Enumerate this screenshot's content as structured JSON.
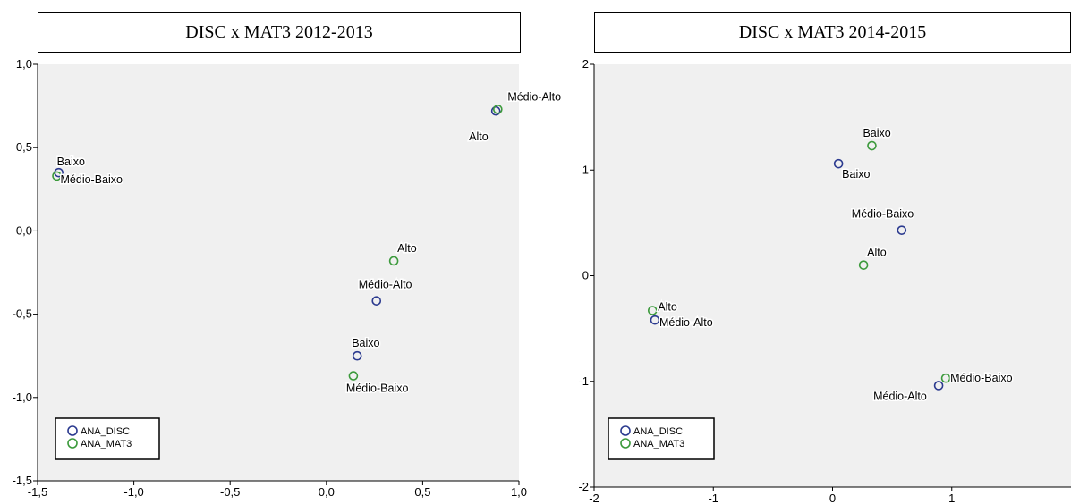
{
  "chart_data": [
    {
      "type": "scatter",
      "title": "DISC x MAT3 2012-2013",
      "xlim": [
        -1.5,
        1.0
      ],
      "ylim": [
        -1.5,
        1.0
      ],
      "xticks": [
        "-1,5",
        "-1,0",
        "-0,5",
        "0,0",
        "0,5",
        "1,0"
      ],
      "xtick_values": [
        -1.5,
        -1.0,
        -0.5,
        0.0,
        0.5,
        1.0
      ],
      "yticks": [
        "1,0",
        "0,5",
        "0,0",
        "-0,5",
        "-1,0",
        "-1,5"
      ],
      "ytick_values": [
        1.0,
        0.5,
        0.0,
        -0.5,
        -1.0,
        -1.5
      ],
      "legend_position": "bottom-left",
      "series": [
        {
          "name": "ANA_DISC",
          "color": "#2b3a8f",
          "points": [
            {
              "label": "Alto",
              "x": 0.88,
              "y": 0.72
            },
            {
              "label": "Baixo",
              "x": -1.39,
              "y": 0.35
            },
            {
              "label": "Médio-Alto",
              "x": 0.26,
              "y": -0.42
            },
            {
              "label": "Baixo",
              "x": 0.16,
              "y": -0.75
            }
          ]
        },
        {
          "name": "ANA_MAT3",
          "color": "#3c9a3c",
          "points": [
            {
              "label": "Médio-Alto",
              "x": 0.89,
              "y": 0.73
            },
            {
              "label": "Médio-Baixo",
              "x": -1.4,
              "y": 0.33
            },
            {
              "label": "Alto",
              "x": 0.35,
              "y": -0.18
            },
            {
              "label": "Médio-Baixo",
              "x": 0.14,
              "y": -0.87
            }
          ]
        }
      ]
    },
    {
      "type": "scatter",
      "title": "DISC x MAT3 2014-2015",
      "xlim": [
        -2,
        2
      ],
      "ylim": [
        -2,
        2
      ],
      "xticks": [
        "-2",
        "-1",
        "0",
        "1"
      ],
      "xtick_values": [
        -2,
        -1,
        0,
        1
      ],
      "yticks": [
        "2",
        "1",
        "0",
        "-1",
        "-2"
      ],
      "ytick_values": [
        2,
        1,
        0,
        -1,
        -2
      ],
      "legend_position": "bottom-left",
      "series": [
        {
          "name": "ANA_DISC",
          "color": "#2b3a8f",
          "points": [
            {
              "label": "Baixo",
              "x": 0.05,
              "y": 1.06
            },
            {
              "label": "Médio-Baixo",
              "x": 0.58,
              "y": 0.43
            },
            {
              "label": "Médio-Alto",
              "x": -1.49,
              "y": -0.42
            },
            {
              "label": "Médio-Alto",
              "x": 0.89,
              "y": -1.04
            }
          ]
        },
        {
          "name": "ANA_MAT3",
          "color": "#3c9a3c",
          "points": [
            {
              "label": "Baixo",
              "x": 0.33,
              "y": 1.23
            },
            {
              "label": "Alto",
              "x": 0.26,
              "y": 0.1
            },
            {
              "label": "Alto",
              "x": -1.51,
              "y": -0.33
            },
            {
              "label": "Médio-Baixo",
              "x": 0.95,
              "y": -0.97
            }
          ]
        }
      ]
    }
  ]
}
